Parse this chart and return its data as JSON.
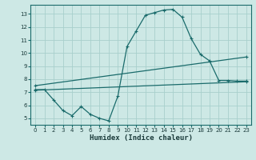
{
  "background_color": "#cde8e5",
  "grid_color": "#a8d0cc",
  "line_color": "#1a6b6b",
  "xlabel": "Humidex (Indice chaleur)",
  "xlim": [
    -0.5,
    23.5
  ],
  "ylim": [
    4.5,
    13.7
  ],
  "xticks": [
    0,
    1,
    2,
    3,
    4,
    5,
    6,
    7,
    8,
    9,
    10,
    11,
    12,
    13,
    14,
    15,
    16,
    17,
    18,
    19,
    20,
    21,
    22,
    23
  ],
  "yticks": [
    5,
    6,
    7,
    8,
    9,
    10,
    11,
    12,
    13
  ],
  "line1_x": [
    0,
    1,
    2,
    3,
    4,
    5,
    6,
    7,
    8,
    9,
    10,
    11,
    12,
    13,
    14,
    15,
    16,
    17,
    18,
    19,
    20,
    21,
    22,
    23
  ],
  "line1_y": [
    7.2,
    7.2,
    6.4,
    5.6,
    5.2,
    5.9,
    5.3,
    5.0,
    4.8,
    6.7,
    10.5,
    11.7,
    12.9,
    13.1,
    13.3,
    13.35,
    12.75,
    11.1,
    9.9,
    9.4,
    7.9,
    7.9,
    7.85,
    7.85
  ],
  "line2_x": [
    0,
    23
  ],
  "line2_y": [
    7.5,
    9.7
  ],
  "line3_x": [
    0,
    23
  ],
  "line3_y": [
    7.15,
    7.8
  ],
  "marker": "+"
}
